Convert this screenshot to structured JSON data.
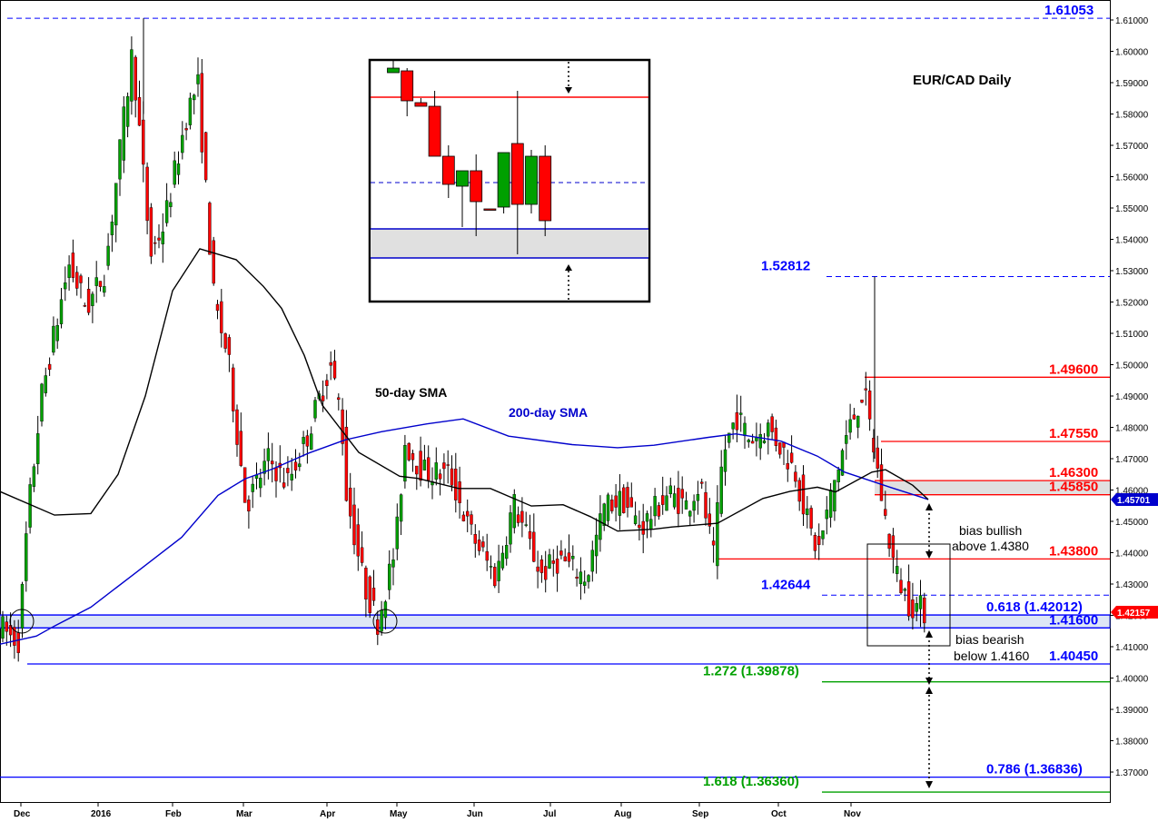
{
  "chart_data": {
    "type": "candlestick",
    "title": "EUR/CAD Daily",
    "ylim": [
      1.3645,
      1.614
    ],
    "y_ticks": [
      "1.61000",
      "1.60000",
      "1.59000",
      "1.58000",
      "1.57000",
      "1.56000",
      "1.55000",
      "1.54000",
      "1.53000",
      "1.52000",
      "1.51000",
      "1.50000",
      "1.49000",
      "1.48000",
      "1.47000",
      "1.46000",
      "1.45000",
      "1.44000",
      "1.43000",
      "1.42000",
      "1.41000",
      "1.40000",
      "1.39000",
      "1.38000",
      "1.37000"
    ],
    "x_ticks": [
      "Dec",
      "2016",
      "Feb",
      "Mar",
      "Apr",
      "May",
      "Jun",
      "Jul",
      "Aug",
      "Sep",
      "Oct",
      "Nov"
    ],
    "current_price": "1.42157",
    "sma200_value": "1.45701",
    "sma_labels": {
      "sma50": "50-day SMA",
      "sma200": "200-day SMA"
    },
    "levels": [
      {
        "label": "1.61053",
        "value": 1.61053,
        "color": "#0000ff",
        "style": "dash"
      },
      {
        "label": "1.52812",
        "value": 1.52812,
        "color": "#0000ff",
        "style": "dash"
      },
      {
        "label": "1.49600",
        "value": 1.496,
        "color": "#ff0000",
        "style": "solid"
      },
      {
        "label": "1.47550",
        "value": 1.4755,
        "color": "#ff0000",
        "style": "solid"
      },
      {
        "label": "1.46300",
        "value": 1.463,
        "color": "#ff0000",
        "style": "solid"
      },
      {
        "label": "1.45850",
        "value": 1.4585,
        "color": "#ff0000",
        "style": "solid"
      },
      {
        "label": "1.43800",
        "value": 1.438,
        "color": "#ff0000",
        "style": "solid"
      },
      {
        "label": "1.42644",
        "value": 1.42644,
        "color": "#0000ff",
        "style": "dash"
      },
      {
        "label": "0.618 (1.42012)",
        "value": 1.42012,
        "color": "#0000ff",
        "style": "solid"
      },
      {
        "label": "1.41600",
        "value": 1.416,
        "color": "#0000ff",
        "style": "solid"
      },
      {
        "label": "1.40450",
        "value": 1.4045,
        "color": "#0000ff",
        "style": "solid"
      },
      {
        "label": "1.272 (1.39878)",
        "value": 1.39878,
        "color": "#00a000",
        "style": "solid"
      },
      {
        "label": "0.786 (1.36836)",
        "value": 1.36836,
        "color": "#0000ff",
        "style": "solid"
      },
      {
        "label": "1.618 (1.36360)",
        "value": 1.3636,
        "color": "#00a000",
        "style": "solid"
      }
    ],
    "annotations": {
      "bias_bullish": [
        "bias bullish",
        "above 1.4380"
      ],
      "bias_bearish": [
        "bias bearish",
        "below 1.4160"
      ]
    },
    "colors": {
      "up": "#00a000",
      "down": "#ff0000",
      "sma50": "#000000",
      "sma200": "#0000cc",
      "support_zone": "#dde6f5",
      "resistance_zone": "#e0e0e0"
    },
    "sma50": [
      [
        1.4595,
        0
      ],
      [
        1.452,
        60
      ],
      [
        1.4525,
        100
      ],
      [
        1.465,
        130
      ],
      [
        1.49,
        160
      ],
      [
        1.5236,
        190
      ],
      [
        1.537,
        220
      ],
      [
        1.5335,
        260
      ],
      [
        1.525,
        290
      ],
      [
        1.518,
        310
      ],
      [
        1.503,
        335
      ],
      [
        1.487,
        355
      ],
      [
        1.472,
        395
      ],
      [
        1.4644,
        440
      ],
      [
        1.4637,
        460
      ],
      [
        1.4605,
        505
      ],
      [
        1.4605,
        540
      ],
      [
        1.4549,
        585
      ],
      [
        1.4553,
        620
      ],
      [
        1.4515,
        650
      ],
      [
        1.4469,
        680
      ],
      [
        1.4475,
        720
      ],
      [
        1.4482,
        740
      ],
      [
        1.4494,
        790
      ],
      [
        1.4573,
        840
      ],
      [
        1.4596,
        870
      ],
      [
        1.4609,
        900
      ],
      [
        1.4594,
        920
      ],
      [
        1.4657,
        960
      ],
      [
        1.4665,
        975
      ],
      [
        1.4615,
        1005
      ],
      [
        1.457,
        1022
      ]
    ],
    "sma200": [
      [
        1.4108,
        0
      ],
      [
        1.4134,
        40
      ],
      [
        1.4166,
        60
      ],
      [
        1.4226,
        100
      ],
      [
        1.4337,
        150
      ],
      [
        1.4449,
        200
      ],
      [
        1.4583,
        240
      ],
      [
        1.4636,
        270
      ],
      [
        1.4667,
        300
      ],
      [
        1.4718,
        340
      ],
      [
        1.476,
        380
      ],
      [
        1.4786,
        420
      ],
      [
        1.4811,
        470
      ],
      [
        1.4827,
        510
      ],
      [
        1.4772,
        560
      ],
      [
        1.4745,
        630
      ],
      [
        1.4735,
        680
      ],
      [
        1.4743,
        720
      ],
      [
        1.4768,
        780
      ],
      [
        1.4779,
        810
      ],
      [
        1.4756,
        860
      ],
      [
        1.4708,
        900
      ],
      [
        1.4657,
        930
      ],
      [
        1.4609,
        980
      ],
      [
        1.457,
        1022
      ]
    ],
    "candle_path": [
      [
        1.4175,
        2
      ],
      [
        1.4135,
        15
      ],
      [
        1.412,
        25
      ],
      [
        1.452,
        35
      ],
      [
        1.49,
        50
      ],
      [
        1.532,
        80
      ],
      [
        1.518,
        100
      ],
      [
        1.53,
        120
      ],
      [
        1.6,
        150
      ],
      [
        1.535,
        170
      ],
      [
        1.545,
        185
      ],
      [
        1.58,
        210
      ],
      [
        1.59,
        222
      ],
      [
        1.52,
        240
      ],
      [
        1.503,
        255
      ],
      [
        1.455,
        275
      ],
      [
        1.47,
        300
      ],
      [
        1.462,
        320
      ],
      [
        1.475,
        340
      ],
      [
        1.5,
        368
      ],
      [
        1.484,
        380
      ],
      [
        1.46,
        385
      ],
      [
        1.43,
        405
      ],
      [
        1.418,
        420
      ],
      [
        1.442,
        440
      ],
      [
        1.475,
        450
      ],
      [
        1.466,
        470
      ],
      [
        1.465,
        500
      ],
      [
        1.448,
        520
      ],
      [
        1.432,
        550
      ],
      [
        1.456,
        570
      ],
      [
        1.433,
        600
      ],
      [
        1.438,
        620
      ],
      [
        1.432,
        650
      ],
      [
        1.455,
        670
      ],
      [
        1.457,
        690
      ],
      [
        1.448,
        710
      ],
      [
        1.459,
        740
      ],
      [
        1.455,
        760
      ],
      [
        1.462,
        775
      ],
      [
        1.438,
        790
      ],
      [
        1.471,
        800
      ],
      [
        1.484,
        815
      ],
      [
        1.476,
        830
      ],
      [
        1.48,
        850
      ],
      [
        1.471,
        870
      ],
      [
        1.466,
        880
      ],
      [
        1.448,
        895
      ],
      [
        1.44,
        905
      ],
      [
        1.459,
        920
      ],
      [
        1.476,
        935
      ],
      [
        1.492,
        955
      ],
      [
        1.467,
        970
      ],
      [
        1.452,
        978
      ],
      [
        1.434,
        990
      ],
      [
        1.424,
        1005
      ],
      [
        1.4216,
        1022
      ]
    ],
    "inset_candles": [
      {
        "o": 80,
        "c": 75,
        "h": 65,
        "l": 80
      },
      {
        "o": 78,
        "c": 111,
        "h": 75,
        "l": 128
      },
      {
        "o": 113,
        "c": 117,
        "h": 108,
        "l": 117
      },
      {
        "o": 117,
        "c": 172,
        "h": 100,
        "l": 172
      },
      {
        "o": 172,
        "c": 203,
        "h": 160,
        "l": 218
      },
      {
        "o": 205,
        "c": 188,
        "h": 188,
        "l": 250
      },
      {
        "o": 188,
        "c": 222,
        "h": 170,
        "l": 260
      },
      {
        "o": 230,
        "c": 230,
        "h": 230,
        "l": 230
      },
      {
        "o": 228,
        "c": 168,
        "h": 168,
        "l": 235
      },
      {
        "o": 158,
        "c": 225,
        "h": 100,
        "l": 280
      },
      {
        "o": 225,
        "c": 172,
        "h": 165,
        "l": 235
      },
      {
        "o": 172,
        "c": 243,
        "h": 160,
        "l": 260
      }
    ]
  },
  "footer_note": ""
}
